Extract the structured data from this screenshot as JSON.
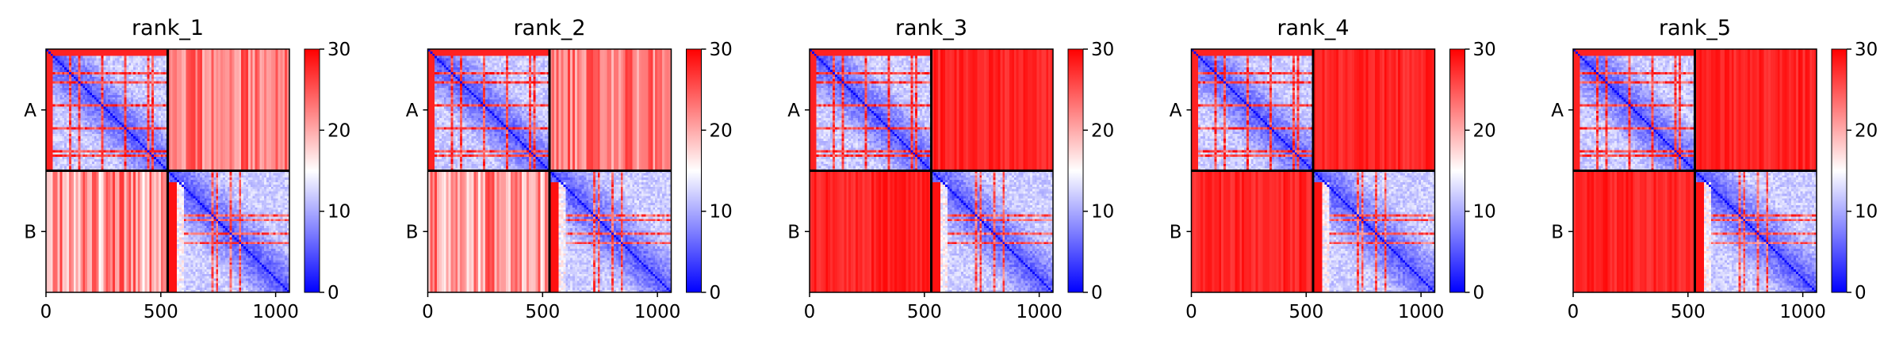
{
  "chart_data": {
    "type": "heatmap",
    "colormap": {
      "name": "bwr",
      "low_color": "#0000ff",
      "mid_color": "#ffffff",
      "high_color": "#ff0000",
      "vmin": 0,
      "vmax": 30,
      "ticks": [
        0,
        10,
        20,
        30
      ]
    },
    "x_ticks": [
      0,
      500,
      1000
    ],
    "x_range": [
      0,
      1060
    ],
    "chain_labels": [
      "A",
      "B"
    ],
    "chain_boundary": 530,
    "panels": [
      {
        "title": "rank_1"
      },
      {
        "title": "rank_2"
      },
      {
        "title": "rank_3"
      },
      {
        "title": "rank_4"
      },
      {
        "title": "rank_5"
      }
    ]
  }
}
